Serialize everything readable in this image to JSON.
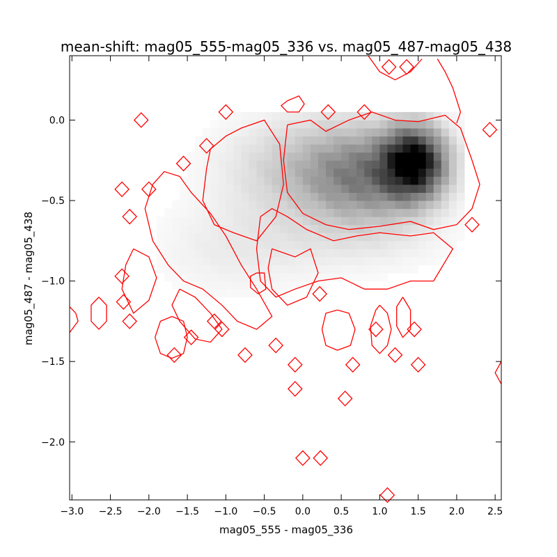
{
  "chart_data": {
    "type": "heatmap",
    "title": "mean-shift: mag05_555-mag05_336 vs. mag05_487-mag05_438",
    "xlabel": "mag05_555 - mag05_336",
    "ylabel": "mag05_487 - mag05_438",
    "xlim": [
      -3.03,
      2.58
    ],
    "ylim": [
      -2.36,
      0.4
    ],
    "grid": false,
    "x_ticks": [
      -3.0,
      -2.5,
      -2.0,
      -1.5,
      -1.0,
      -0.5,
      0.0,
      0.5,
      1.0,
      1.5,
      2.0,
      2.5
    ],
    "x_tick_labels": [
      "−3.0",
      "−2.5",
      "−2.0",
      "−1.5",
      "−1.0",
      "−0.5",
      "0.0",
      "0.5",
      "1.0",
      "1.5",
      "2.0",
      "2.5"
    ],
    "y_ticks": [
      0.0,
      -0.5,
      -1.0,
      -1.5,
      -2.0
    ],
    "y_tick_labels": [
      "0.0",
      "−0.5",
      "−1.0",
      "−1.5",
      "−2.0"
    ],
    "density_peak": {
      "x": 1.55,
      "y": -0.26
    },
    "density_blobs": [
      {
        "cx": 1.45,
        "cy": -0.26,
        "sx": 0.28,
        "sy": 0.15,
        "amp": 0.95
      },
      {
        "cx": 0.85,
        "cy": -0.35,
        "sx": 0.55,
        "sy": 0.2,
        "amp": 0.42
      },
      {
        "cx": 0.1,
        "cy": -0.3,
        "sx": 0.75,
        "sy": 0.22,
        "amp": 0.22
      },
      {
        "cx": -0.9,
        "cy": -0.8,
        "sx": 0.7,
        "sy": 0.2,
        "amp": 0.07
      },
      {
        "cx": 0.6,
        "cy": -0.75,
        "sx": 0.9,
        "sy": 0.15,
        "amp": 0.06
      }
    ],
    "contour_color": "#ff0000",
    "contours": [
      [
        [
          -0.2,
          -0.03
        ],
        [
          0.1,
          0.0
        ],
        [
          0.3,
          -0.07
        ],
        [
          0.6,
          0.0
        ],
        [
          0.9,
          0.05
        ],
        [
          1.2,
          0.0
        ],
        [
          1.5,
          -0.01
        ],
        [
          1.85,
          0.03
        ],
        [
          2.05,
          -0.05
        ],
        [
          2.2,
          -0.25
        ],
        [
          2.3,
          -0.4
        ],
        [
          2.2,
          -0.55
        ],
        [
          2.0,
          -0.65
        ],
        [
          1.7,
          -0.68
        ],
        [
          1.4,
          -0.63
        ],
        [
          1.0,
          -0.66
        ],
        [
          0.6,
          -0.68
        ],
        [
          0.3,
          -0.65
        ],
        [
          0.0,
          -0.58
        ],
        [
          -0.2,
          -0.45
        ],
        [
          -0.25,
          -0.25
        ],
        [
          -0.2,
          -0.03
        ]
      ],
      [
        [
          -0.55,
          -0.6
        ],
        [
          -0.4,
          -0.55
        ],
        [
          -0.2,
          -0.6
        ],
        [
          0.05,
          -0.68
        ],
        [
          0.4,
          -0.75
        ],
        [
          0.7,
          -0.72
        ],
        [
          1.0,
          -0.7
        ],
        [
          1.4,
          -0.72
        ],
        [
          1.7,
          -0.7
        ],
        [
          1.95,
          -0.8
        ],
        [
          1.7,
          -1.0
        ],
        [
          1.4,
          -1.0
        ],
        [
          1.1,
          -1.05
        ],
        [
          0.8,
          -1.05
        ],
        [
          0.5,
          -0.98
        ],
        [
          0.2,
          -1.0
        ],
        [
          -0.1,
          -1.05
        ],
        [
          -0.35,
          -1.1
        ],
        [
          -0.55,
          -1.0
        ],
        [
          -0.6,
          -0.8
        ],
        [
          -0.55,
          -0.6
        ]
      ],
      [
        [
          -1.2,
          -0.18
        ],
        [
          -1.0,
          -0.1
        ],
        [
          -0.8,
          -0.05
        ],
        [
          -0.5,
          0.0
        ],
        [
          -0.3,
          -0.15
        ],
        [
          -0.25,
          -0.4
        ],
        [
          -0.35,
          -0.6
        ],
        [
          -0.6,
          -0.75
        ],
        [
          -0.9,
          -0.7
        ],
        [
          -1.15,
          -0.65
        ],
        [
          -1.3,
          -0.5
        ],
        [
          -1.25,
          -0.3
        ],
        [
          -1.2,
          -0.18
        ]
      ],
      [
        [
          -1.95,
          -0.4
        ],
        [
          -1.8,
          -0.32
        ],
        [
          -1.6,
          -0.35
        ],
        [
          -1.45,
          -0.45
        ],
        [
          -1.2,
          -0.58
        ],
        [
          -1.0,
          -0.72
        ],
        [
          -0.8,
          -0.9
        ],
        [
          -0.6,
          -1.05
        ],
        [
          -0.4,
          -1.22
        ],
        [
          -0.6,
          -1.3
        ],
        [
          -0.85,
          -1.25
        ],
        [
          -1.05,
          -1.15
        ],
        [
          -1.3,
          -1.05
        ],
        [
          -1.55,
          -1.0
        ],
        [
          -1.75,
          -0.9
        ],
        [
          -1.95,
          -0.75
        ],
        [
          -2.05,
          -0.55
        ],
        [
          -1.95,
          -0.4
        ]
      ],
      [
        [
          -2.2,
          -0.8
        ],
        [
          -2.0,
          -0.85
        ],
        [
          -1.9,
          -0.98
        ],
        [
          -2.0,
          -1.12
        ],
        [
          -2.2,
          -1.2
        ],
        [
          -2.35,
          -1.05
        ],
        [
          -2.3,
          -0.9
        ],
        [
          -2.2,
          -0.8
        ]
      ],
      [
        [
          0.85,
          0.4
        ],
        [
          1.0,
          0.3
        ],
        [
          1.2,
          0.25
        ],
        [
          1.4,
          0.3
        ],
        [
          1.55,
          0.38
        ]
      ],
      [
        [
          1.75,
          0.38
        ],
        [
          1.85,
          0.3
        ],
        [
          1.95,
          0.2
        ],
        [
          2.05,
          0.05
        ],
        [
          2.0,
          -0.02
        ]
      ],
      [
        [
          -0.4,
          -0.8
        ],
        [
          -0.1,
          -0.85
        ],
        [
          0.1,
          -0.8
        ],
        [
          0.2,
          -0.95
        ],
        [
          0.05,
          -1.1
        ],
        [
          -0.2,
          -1.15
        ],
        [
          -0.4,
          -1.05
        ],
        [
          -0.45,
          -0.92
        ],
        [
          -0.4,
          -0.8
        ]
      ],
      [
        [
          -1.6,
          -1.05
        ],
        [
          -1.4,
          -1.1
        ],
        [
          -1.2,
          -1.2
        ],
        [
          -1.05,
          -1.3
        ],
        [
          -1.2,
          -1.38
        ],
        [
          -1.4,
          -1.36
        ],
        [
          -1.6,
          -1.25
        ],
        [
          -1.7,
          -1.15
        ],
        [
          -1.6,
          -1.05
        ]
      ],
      [
        [
          -1.7,
          -1.22
        ],
        [
          -1.55,
          -1.25
        ],
        [
          -1.5,
          -1.35
        ],
        [
          -1.55,
          -1.45
        ],
        [
          -1.7,
          -1.48
        ],
        [
          -1.85,
          -1.45
        ],
        [
          -1.92,
          -1.35
        ],
        [
          -1.85,
          -1.25
        ],
        [
          -1.7,
          -1.22
        ]
      ],
      [
        [
          0.45,
          -1.18
        ],
        [
          0.6,
          -1.2
        ],
        [
          0.68,
          -1.3
        ],
        [
          0.62,
          -1.4
        ],
        [
          0.45,
          -1.43
        ],
        [
          0.3,
          -1.4
        ],
        [
          0.25,
          -1.3
        ],
        [
          0.3,
          -1.2
        ],
        [
          0.45,
          -1.18
        ]
      ],
      [
        [
          -0.6,
          -0.95
        ],
        [
          -0.5,
          -0.95
        ],
        [
          -0.48,
          -1.05
        ],
        [
          -0.58,
          -1.08
        ],
        [
          -0.68,
          -1.04
        ],
        [
          -0.68,
          -0.97
        ],
        [
          -0.6,
          -0.95
        ]
      ],
      [
        [
          -0.2,
          0.12
        ],
        [
          -0.05,
          0.15
        ],
        [
          0.02,
          0.1
        ],
        [
          -0.05,
          0.05
        ],
        [
          -0.2,
          0.05
        ],
        [
          -0.28,
          0.09
        ],
        [
          -0.2,
          0.12
        ]
      ],
      [
        [
          1.0,
          -1.15
        ],
        [
          1.1,
          -1.2
        ],
        [
          1.15,
          -1.3
        ],
        [
          1.1,
          -1.4
        ],
        [
          1.0,
          -1.45
        ],
        [
          0.9,
          -1.4
        ],
        [
          0.88,
          -1.28
        ],
        [
          0.95,
          -1.18
        ],
        [
          1.0,
          -1.15
        ]
      ],
      [
        [
          1.3,
          -1.1
        ],
        [
          1.4,
          -1.18
        ],
        [
          1.4,
          -1.3
        ],
        [
          1.3,
          -1.35
        ],
        [
          1.22,
          -1.28
        ],
        [
          1.22,
          -1.16
        ],
        [
          1.3,
          -1.1
        ]
      ],
      [
        [
          -2.65,
          -1.1
        ],
        [
          -2.55,
          -1.15
        ],
        [
          -2.55,
          -1.25
        ],
        [
          -2.65,
          -1.3
        ],
        [
          -2.75,
          -1.25
        ],
        [
          -2.75,
          -1.15
        ],
        [
          -2.65,
          -1.1
        ]
      ],
      [
        [
          -3.03,
          -1.16
        ],
        [
          -2.95,
          -1.2
        ],
        [
          -2.92,
          -1.25
        ],
        [
          -3.03,
          -1.32
        ]
      ],
      [
        [
          2.58,
          -1.5
        ],
        [
          2.5,
          -1.57
        ],
        [
          2.58,
          -1.64
        ]
      ]
    ],
    "diamonds": [
      [
        -2.1,
        0.0
      ],
      [
        -1.25,
        -0.16
      ],
      [
        -1.0,
        0.05
      ],
      [
        0.33,
        0.05
      ],
      [
        0.8,
        0.05
      ],
      [
        1.12,
        0.33
      ],
      [
        1.35,
        0.33
      ],
      [
        2.43,
        -0.06
      ],
      [
        -1.55,
        -0.27
      ],
      [
        -2.0,
        -0.43
      ],
      [
        -2.35,
        -0.43
      ],
      [
        -2.25,
        -0.6
      ],
      [
        2.2,
        -0.65
      ],
      [
        -2.35,
        -0.97
      ],
      [
        -2.33,
        -1.13
      ],
      [
        -2.25,
        -1.25
      ],
      [
        -1.15,
        -1.25
      ],
      [
        -1.05,
        -1.3
      ],
      [
        -0.35,
        -1.4
      ],
      [
        -1.67,
        -1.46
      ],
      [
        -1.45,
        -1.35
      ],
      [
        -0.75,
        -1.46
      ],
      [
        -0.1,
        -1.52
      ],
      [
        0.65,
        -1.52
      ],
      [
        0.95,
        -1.3
      ],
      [
        1.2,
        -1.46
      ],
      [
        1.45,
        -1.3
      ],
      [
        1.5,
        -1.52
      ],
      [
        0.55,
        -1.73
      ],
      [
        -0.1,
        -1.67
      ],
      [
        0.0,
        -2.1
      ],
      [
        0.23,
        -2.1
      ],
      [
        1.1,
        -2.33
      ],
      [
        0.22,
        -1.08
      ]
    ]
  }
}
